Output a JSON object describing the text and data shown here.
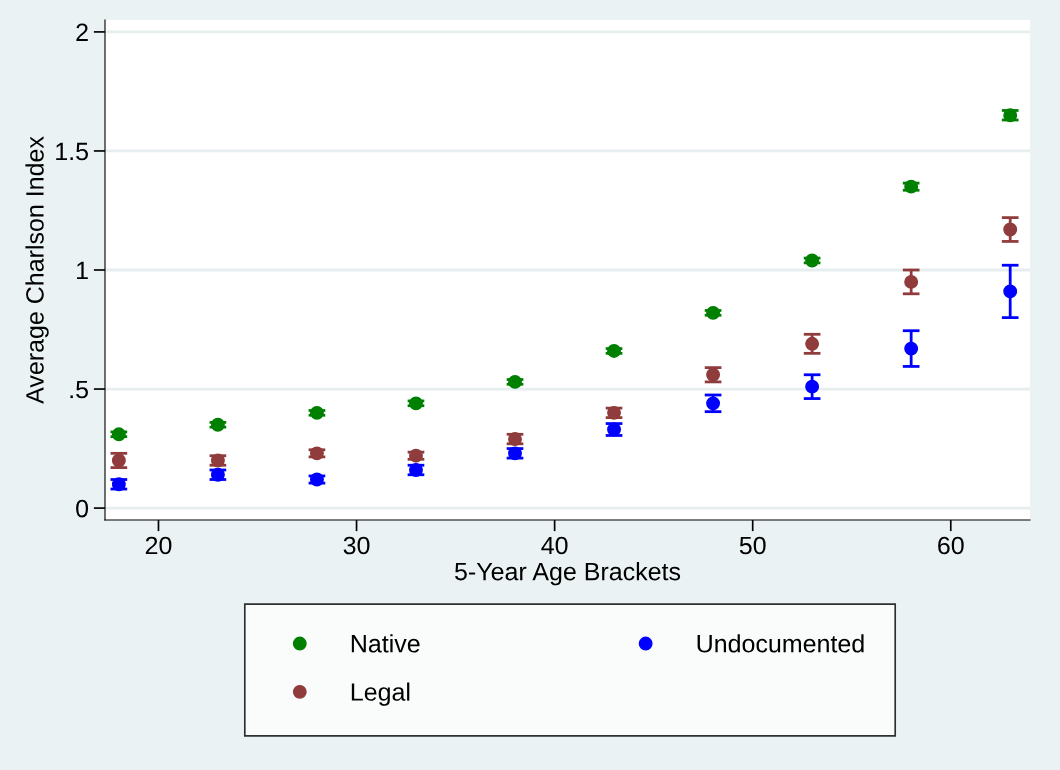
{
  "chart_data": {
    "type": "scatter",
    "xlabel": "5-Year Age Brackets",
    "ylabel": "Average Charlson Index",
    "x": [
      18,
      23,
      28,
      33,
      38,
      43,
      48,
      53,
      58,
      63
    ],
    "series": [
      {
        "name": "Native",
        "color": "#008000",
        "values": [
          0.31,
          0.35,
          0.4,
          0.44,
          0.53,
          0.66,
          0.82,
          1.04,
          1.35,
          1.65
        ],
        "errors": [
          0.01,
          0.01,
          0.01,
          0.01,
          0.01,
          0.01,
          0.01,
          0.01,
          0.015,
          0.02
        ]
      },
      {
        "name": "Legal",
        "color": "#903c3c",
        "values": [
          0.2,
          0.2,
          0.23,
          0.22,
          0.29,
          0.4,
          0.56,
          0.69,
          0.95,
          1.17
        ],
        "errors": [
          0.03,
          0.02,
          0.015,
          0.015,
          0.02,
          0.02,
          0.03,
          0.04,
          0.05,
          0.05
        ]
      },
      {
        "name": "Undocumented",
        "color": "#0000ff",
        "values": [
          0.1,
          0.14,
          0.12,
          0.16,
          0.23,
          0.33,
          0.44,
          0.51,
          0.67,
          0.91
        ],
        "errors": [
          0.02,
          0.02,
          0.015,
          0.02,
          0.02,
          0.025,
          0.035,
          0.05,
          0.075,
          0.11
        ]
      }
    ],
    "xlim": [
      17.3,
      64
    ],
    "ylim": [
      -0.05,
      2.05
    ],
    "xticks": [
      20,
      30,
      40,
      50,
      60
    ],
    "yticks": [
      {
        "value": 0,
        "label": "0"
      },
      {
        "value": 0.5,
        "label": ".5"
      },
      {
        "value": 1,
        "label": "1"
      },
      {
        "value": 1.5,
        "label": "1.5"
      },
      {
        "value": 2,
        "label": "2"
      }
    ],
    "grid": "y",
    "legend": "bottom",
    "marker": "circle"
  }
}
